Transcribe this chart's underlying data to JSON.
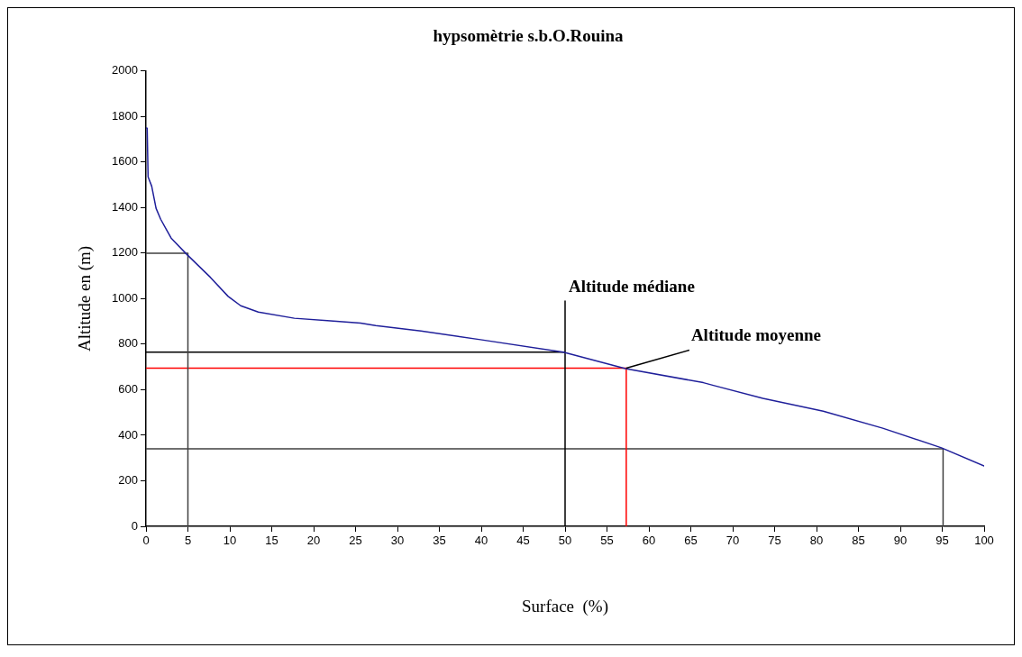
{
  "chart_data": {
    "type": "line",
    "title": "hypsomètrie s.b.O.Rouina",
    "xlabel": "Surface  (%)",
    "ylabel": "Altitude en (m)",
    "series": [
      {
        "color": "#1f1f9a",
        "x": [
          0,
          0.14,
          0.25,
          0.68,
          1.2,
          1.75,
          3.0,
          4.8,
          7.7,
          9.8,
          11.3,
          13.4,
          17.7,
          22,
          25.6,
          27.4,
          32.8,
          39.9,
          49.8,
          57.2,
          66.5,
          67.9,
          73.6,
          80.8,
          87.9,
          94.9,
          100
        ],
        "values": [
          1750,
          1749,
          1535,
          1494,
          1397,
          1349,
          1266,
          1197,
          1093,
          1010,
          969,
          941,
          914,
          903,
          893,
          882,
          858,
          820,
          765,
          693,
          631,
          617,
          562,
          506,
          431,
          345,
          265
        ]
      },
      {
        "color": "#404040",
        "x": [
          0,
          5,
          5
        ],
        "values": [
          1200,
          1200,
          0
        ]
      },
      {
        "color": "#000000",
        "x": [
          0,
          50,
          50,
          50
        ],
        "values": [
          765,
          765,
          990,
          0
        ]
      },
      {
        "color": "#ff0000",
        "x": [
          0,
          57.3,
          57.3
        ],
        "values": [
          695,
          695,
          0
        ]
      },
      {
        "color": "#404040",
        "x": [
          0,
          95.1,
          95.1
        ],
        "values": [
          340,
          340,
          0
        ]
      }
    ],
    "xlim": [
      0,
      100
    ],
    "xticks": [
      0,
      5,
      10,
      15,
      20,
      25,
      30,
      35,
      40,
      45,
      50,
      55,
      60,
      65,
      70,
      75,
      80,
      85,
      90,
      95,
      100
    ],
    "ylim": [
      0,
      2000
    ],
    "yticks": [
      0,
      200,
      400,
      600,
      800,
      1000,
      1200,
      1400,
      1600,
      1800,
      2000
    ],
    "grid": false,
    "legend": false,
    "marker": "none",
    "line_style": "solid",
    "annotations": [
      {
        "text": "Altitude médiane",
        "x": 50,
        "y": 990
      },
      {
        "text": "Altitude moyenne",
        "x": 57.3,
        "y": 695
      }
    ]
  }
}
